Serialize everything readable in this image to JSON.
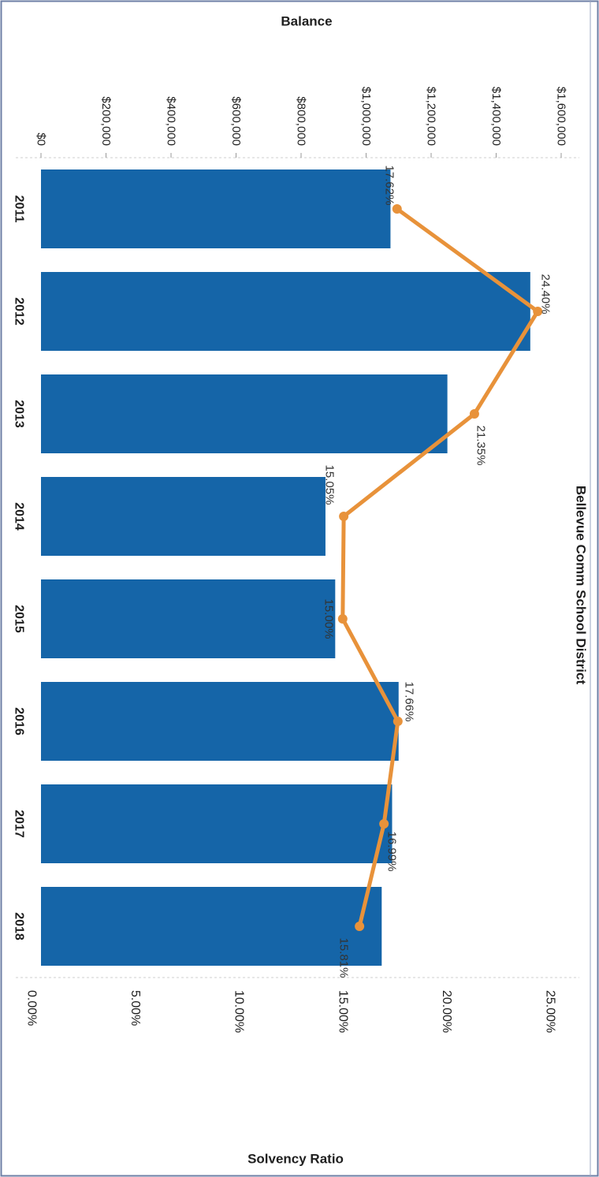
{
  "chart_data": {
    "title": "Bellevue Comm School District",
    "categories": [
      "2011",
      "2012",
      "2013",
      "2014",
      "2015",
      "2016",
      "2017",
      "2018"
    ],
    "balance_axis": {
      "label": "Balance",
      "ticks": [
        "$0",
        "$200,000",
        "$400,000",
        "$600,000",
        "$800,000",
        "$1,000,000",
        "$1,200,000",
        "$1,400,000",
        "$1,600,000"
      ],
      "range": [
        0,
        1600000
      ]
    },
    "ratio_axis": {
      "label": "Solvency Ratio",
      "ticks": [
        "0.00%",
        "5.00%",
        "10.00%",
        "15.00%",
        "20.00%",
        "25.00%"
      ],
      "range": [
        0,
        25
      ]
    },
    "series": [
      {
        "type": "bar",
        "axis": "balance",
        "color": "#1565a8",
        "values": [
          1075000,
          1505000,
          1250000,
          875000,
          905000,
          1100000,
          1080000,
          1048000
        ]
      },
      {
        "type": "line",
        "axis": "ratio",
        "color": "#e8923a",
        "values": [
          17.62,
          24.4,
          21.35,
          15.05,
          15.0,
          17.66,
          16.99,
          15.81
        ],
        "labels": [
          "17.62%",
          "24.40%",
          "21.35%",
          "15.05%",
          "15.00%",
          "17.66%",
          "16.99%",
          "15.81%"
        ]
      }
    ]
  }
}
